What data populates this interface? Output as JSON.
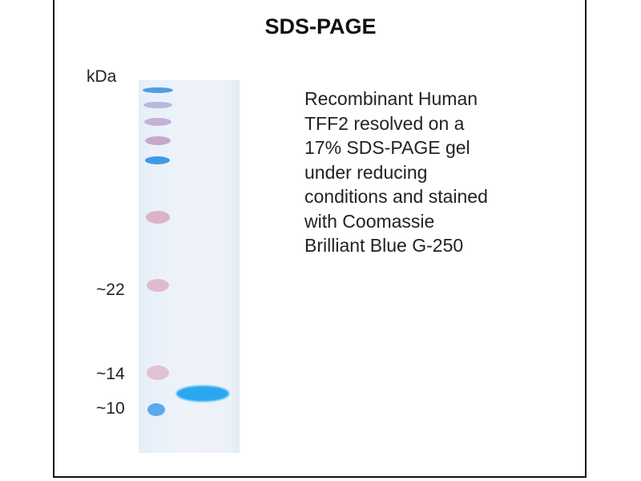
{
  "title": "SDS-PAGE",
  "unit_label": "kDa",
  "markers": [
    {
      "label": "~22",
      "kda": 22
    },
    {
      "label": "~14",
      "kda": 14
    },
    {
      "label": "~10",
      "kda": 10
    }
  ],
  "description_lines": [
    "Recombinant Human",
    "TFF2 resolved  on a",
    "17% SDS-PAGE gel",
    "under reducing",
    "conditions and stained",
    "with Coomassie",
    "Brilliant Blue G-250"
  ],
  "colors": {
    "ladder_blue": "#3a9be8",
    "ladder_pink": "#c9a0bd",
    "sample_band": "#29a8f0"
  }
}
